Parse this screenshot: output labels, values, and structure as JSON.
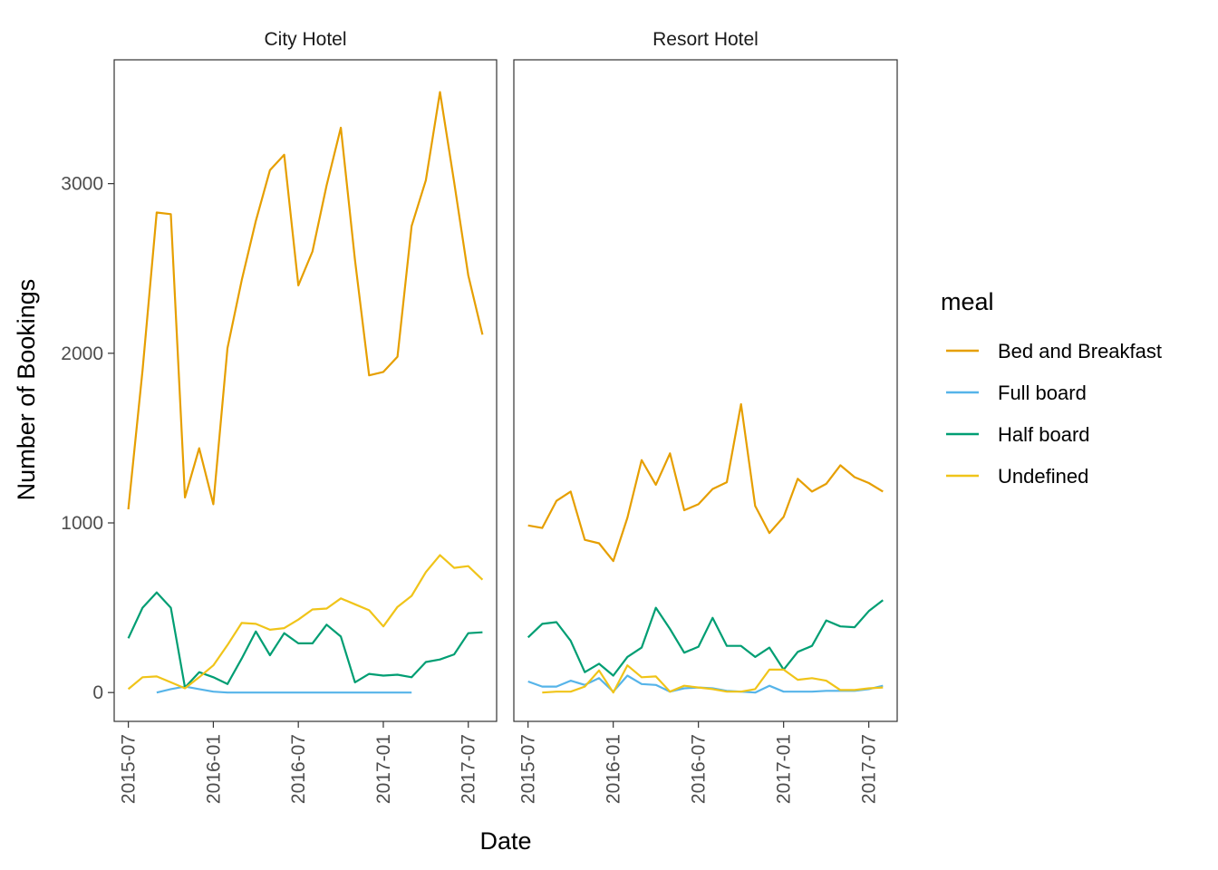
{
  "chart_data": {
    "type": "line",
    "x_label": "Date",
    "y_label": "Number of Bookings",
    "legend_title": "meal",
    "legend_position": "right",
    "grid": false,
    "x_ticks": [
      "2015-07",
      "2016-01",
      "2016-07",
      "2017-01",
      "2017-07"
    ],
    "y_ticks": [
      "0",
      "1000",
      "2000",
      "3000"
    ],
    "xlim": [
      "2015-06",
      "2017-09"
    ],
    "ylim": [
      -170,
      3730
    ],
    "colors": {
      "Bed and Breakfast": "#E69F00",
      "Full board": "#56B4E9",
      "Half board": "#009E73",
      "Undefined": "#F0C419"
    },
    "months": [
      "2015-07",
      "2015-08",
      "2015-09",
      "2015-10",
      "2015-11",
      "2015-12",
      "2016-01",
      "2016-02",
      "2016-03",
      "2016-04",
      "2016-05",
      "2016-06",
      "2016-07",
      "2016-08",
      "2016-09",
      "2016-10",
      "2016-11",
      "2016-12",
      "2017-01",
      "2017-02",
      "2017-03",
      "2017-04",
      "2017-05",
      "2017-06",
      "2017-07",
      "2017-08"
    ],
    "panels": [
      {
        "strip": "City Hotel",
        "series": [
          {
            "name": "Bed and Breakfast",
            "values": [
              1080,
              1900,
              2830,
              2820,
              1150,
              1440,
              1110,
              2030,
              2430,
              2780,
              3080,
              3170,
              2400,
              2600,
              2990,
              3330,
              2550,
              1870,
              1890,
              1980,
              2750,
              3020,
              3540,
              3010,
              2460,
              2110
            ]
          },
          {
            "name": "Full board",
            "values": [
              null,
              null,
              0,
              20,
              35,
              20,
              5,
              0,
              0,
              0,
              0,
              0,
              0,
              0,
              0,
              0,
              0,
              0,
              0,
              0,
              0,
              null,
              null,
              null,
              null,
              null
            ]
          },
          {
            "name": "Half board",
            "values": [
              320,
              500,
              590,
              500,
              30,
              120,
              90,
              50,
              200,
              360,
              220,
              350,
              290,
              290,
              400,
              330,
              60,
              110,
              100,
              105,
              90,
              180,
              195,
              225,
              350,
              355
            ]
          },
          {
            "name": "Undefined",
            "values": [
              20,
              90,
              95,
              60,
              25,
              90,
              160,
              280,
              410,
              405,
              370,
              380,
              430,
              490,
              495,
              555,
              520,
              485,
              390,
              505,
              570,
              710,
              810,
              735,
              745,
              665
            ]
          }
        ]
      },
      {
        "strip": "Resort Hotel",
        "series": [
          {
            "name": "Bed and Breakfast",
            "values": [
              985,
              970,
              1130,
              1185,
              900,
              880,
              775,
              1030,
              1370,
              1225,
              1410,
              1075,
              1110,
              1200,
              1240,
              1700,
              1100,
              940,
              1035,
              1260,
              1185,
              1230,
              1340,
              1270,
              1235,
              1185
            ]
          },
          {
            "name": "Full board",
            "values": [
              65,
              35,
              35,
              70,
              45,
              85,
              5,
              100,
              50,
              45,
              5,
              25,
              30,
              25,
              10,
              5,
              0,
              40,
              5,
              5,
              5,
              10,
              10,
              10,
              20,
              40
            ]
          },
          {
            "name": "Half board",
            "values": [
              325,
              405,
              415,
              305,
              120,
              170,
              100,
              210,
              265,
              500,
              375,
              235,
              270,
              440,
              275,
              275,
              210,
              265,
              135,
              240,
              275,
              425,
              390,
              385,
              480,
              545
            ]
          },
          {
            "name": "Undefined",
            "values": [
              null,
              0,
              5,
              5,
              35,
              130,
              0,
              160,
              90,
              95,
              5,
              40,
              30,
              20,
              5,
              5,
              20,
              135,
              135,
              75,
              85,
              70,
              15,
              15,
              25,
              30
            ]
          }
        ]
      }
    ]
  }
}
